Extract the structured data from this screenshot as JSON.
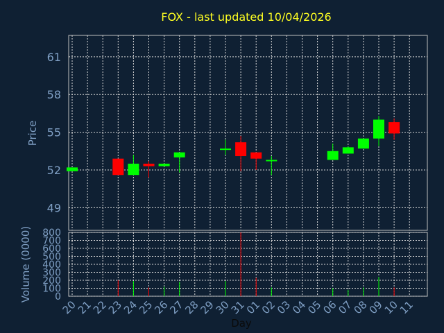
{
  "chart_data": {
    "type": "candlestick",
    "title": "FOX - last updated 10/04/2026",
    "xlabel": "Day",
    "colors": {
      "background": "#0f2033",
      "up": "#00ff00",
      "down": "#ff0000",
      "text": "#7f9fc4",
      "title": "#ffff22",
      "grid": "#d8d8d8",
      "frame": "#bfbfbf"
    },
    "x_tick_labels": [
      "20",
      "21",
      "22",
      "23",
      "24",
      "25",
      "26",
      "27",
      "28",
      "29",
      "30",
      "31",
      "01",
      "02",
      "03",
      "04",
      "05",
      "06",
      "07",
      "08",
      "09",
      "10",
      "11"
    ],
    "price_panel": {
      "ylabel": "Price",
      "yticks": [
        49,
        52,
        55,
        58,
        61
      ],
      "ylim": [
        47.2,
        62.7
      ],
      "grid": true
    },
    "volume_panel": {
      "ylabel": "Volume (0000)",
      "yticks": [
        0,
        100,
        200,
        300,
        400,
        500,
        600,
        700,
        800
      ],
      "ylim": [
        0,
        800
      ],
      "grid": true
    },
    "candles": [
      {
        "day": "20",
        "open": 51.9,
        "high": 52.2,
        "low": 51.9,
        "close": 52.2,
        "volume": 0
      },
      {
        "day": "23",
        "open": 52.9,
        "high": 52.9,
        "low": 51.6,
        "close": 51.6,
        "volume": 200
      },
      {
        "day": "24",
        "open": 51.6,
        "high": 53.2,
        "low": 51.6,
        "close": 52.5,
        "volume": 190
      },
      {
        "day": "25",
        "open": 52.5,
        "high": 52.7,
        "low": 51.4,
        "close": 52.3,
        "volume": 110
      },
      {
        "day": "26",
        "open": 52.3,
        "high": 52.5,
        "low": 52.3,
        "close": 52.5,
        "volume": 120
      },
      {
        "day": "27",
        "open": 53.0,
        "high": 53.4,
        "low": 51.8,
        "close": 53.4,
        "volume": 180
      },
      {
        "day": "30",
        "open": 53.6,
        "high": 54.4,
        "low": 53.2,
        "close": 53.7,
        "volume": 190
      },
      {
        "day": "31",
        "open": 54.2,
        "high": 54.7,
        "low": 51.9,
        "close": 53.1,
        "volume": 800
      },
      {
        "day": "01",
        "open": 53.4,
        "high": 53.4,
        "low": 52.0,
        "close": 52.9,
        "volume": 230
      },
      {
        "day": "02",
        "open": 52.8,
        "high": 53.1,
        "low": 51.6,
        "close": 52.8,
        "volume": 110
      },
      {
        "day": "06",
        "open": 52.8,
        "high": 54.1,
        "low": 52.8,
        "close": 53.5,
        "volume": 100
      },
      {
        "day": "07",
        "open": 53.3,
        "high": 53.9,
        "low": 53.3,
        "close": 53.8,
        "volume": 80
      },
      {
        "day": "08",
        "open": 53.7,
        "high": 54.5,
        "low": 53.7,
        "close": 54.5,
        "volume": 110
      },
      {
        "day": "09",
        "open": 54.5,
        "high": 56.3,
        "low": 53.9,
        "close": 56.0,
        "volume": 240
      },
      {
        "day": "10",
        "open": 55.8,
        "high": 56.1,
        "low": 54.4,
        "close": 54.9,
        "volume": 110
      }
    ]
  }
}
